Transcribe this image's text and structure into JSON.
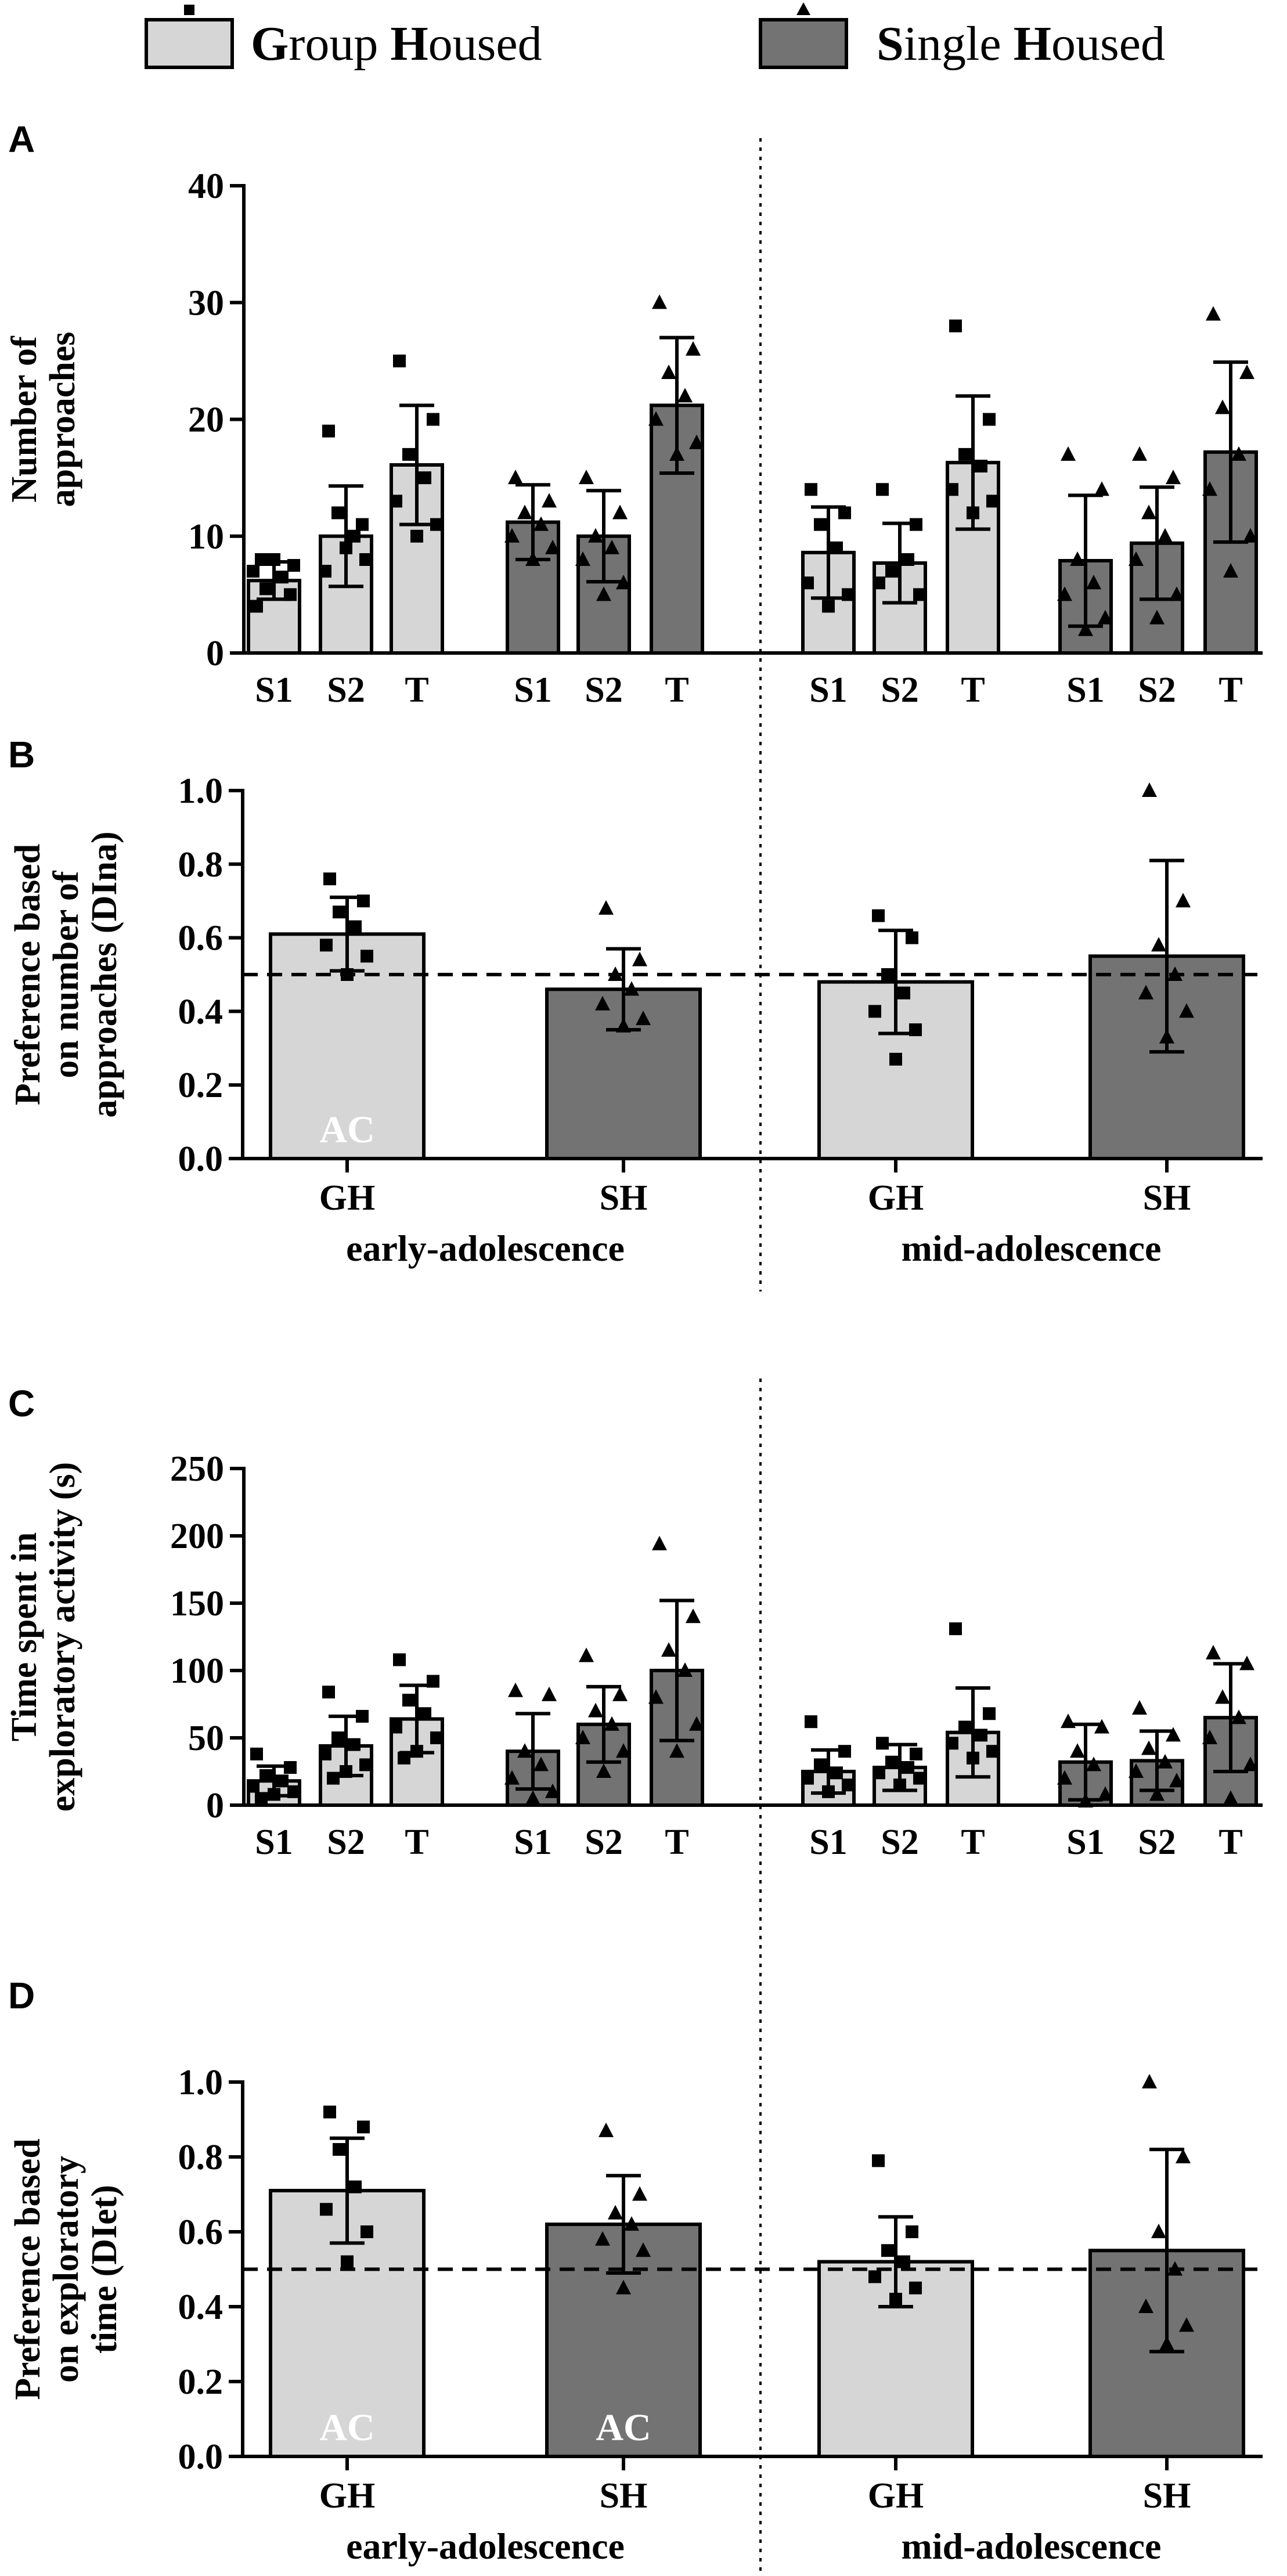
{
  "legend": {
    "group_housed": {
      "first": "G",
      "rest1": "roup ",
      "cap2": "H",
      "rest2": "oused",
      "marker": "square-marker-icon"
    },
    "single_housed": {
      "first": "S",
      "rest1": "ingle ",
      "cap2": "H",
      "rest2": "oused",
      "marker": "triangle-marker-icon"
    }
  },
  "colors": {
    "group_housed": "#d6d6d6",
    "single_housed": "#737373",
    "edge": "#000000"
  },
  "chart_data": [
    {
      "panel": "A",
      "type": "bar",
      "ylabel_lines": [
        "Number of",
        "approaches"
      ],
      "ylim": [
        0,
        40
      ],
      "yticks": [
        "0",
        "10",
        "20",
        "30",
        "40"
      ],
      "categories": [
        "S1",
        "S2",
        "T",
        "S1",
        "S2",
        "T",
        "S1",
        "S2",
        "T",
        "S1",
        "S2",
        "T"
      ],
      "series": [
        {
          "name": "Group Housed",
          "bars": [
            {
              "cat": 0,
              "value": 6.2,
              "sd": 1.6,
              "points": [
                4,
                5,
                5.5,
                6.5,
                7,
                7.5,
                8,
                8
              ]
            },
            {
              "cat": 1,
              "value": 10.0,
              "sd": 4.3,
              "points": [
                19,
                11,
                12,
                10,
                7,
                8,
                9
              ]
            },
            {
              "cat": 2,
              "value": 16.1,
              "sd": 5.1,
              "points": [
                25,
                20,
                17,
                15,
                13,
                11,
                10
              ]
            },
            {
              "cat": 6,
              "value": 8.6,
              "sd": 3.9,
              "points": [
                14,
                12,
                11,
                9,
                6,
                5,
                4
              ]
            },
            {
              "cat": 7,
              "value": 7.7,
              "sd": 3.4,
              "points": [
                14,
                11,
                7,
                8,
                6,
                5
              ]
            },
            {
              "cat": 8,
              "value": 16.3,
              "sd": 5.7,
              "points": [
                28,
                20,
                17,
                16,
                14,
                13,
                12
              ]
            }
          ]
        },
        {
          "name": "Single Housed",
          "bars": [
            {
              "cat": 3,
              "value": 11.2,
              "sd": 3.2,
              "points": [
                15,
                13,
                12,
                11,
                10,
                9,
                8
              ]
            },
            {
              "cat": 4,
              "value": 10.0,
              "sd": 3.9,
              "points": [
                15,
                12,
                10,
                9,
                8,
                6,
                5
              ]
            },
            {
              "cat": 5,
              "value": 21.2,
              "sd": 5.8,
              "points": [
                30,
                26,
                24,
                22,
                20,
                18,
                17
              ]
            },
            {
              "cat": 9,
              "value": 7.9,
              "sd": 5.6,
              "points": [
                17,
                14,
                8,
                6,
                5,
                3,
                2
              ]
            },
            {
              "cat": 10,
              "value": 9.4,
              "sd": 4.8,
              "points": [
                17,
                15,
                12,
                10,
                8,
                5,
                3
              ]
            },
            {
              "cat": 11,
              "value": 17.2,
              "sd": 7.7,
              "points": [
                29,
                24,
                21,
                17,
                14,
                10,
                7
              ]
            }
          ]
        }
      ]
    },
    {
      "panel": "B",
      "type": "bar",
      "ylabel_lines": [
        "Preference based",
        "on number of",
        "approaches (DIna)"
      ],
      "ylim": [
        0,
        1.0
      ],
      "yticks": [
        "0.0",
        "0.2",
        "0.4",
        "0.6",
        "0.8",
        "1.0"
      ],
      "reference_line": 0.5,
      "categories": [
        "GH",
        "SH",
        "GH",
        "SH"
      ],
      "group_labels": [
        "early-adolescence",
        "mid-adolescence"
      ],
      "bars": [
        {
          "cat": 0,
          "series": "Group Housed",
          "value": 0.61,
          "sd": 0.1,
          "annotation": "AC",
          "points": [
            0.76,
            0.7,
            0.67,
            0.63,
            0.58,
            0.55,
            0.5
          ]
        },
        {
          "cat": 1,
          "series": "Single Housed",
          "value": 0.46,
          "sd": 0.11,
          "points": [
            0.68,
            0.54,
            0.5,
            0.46,
            0.42,
            0.38,
            0.36
          ]
        },
        {
          "cat": 2,
          "series": "Group Housed",
          "value": 0.48,
          "sd": 0.14,
          "points": [
            0.66,
            0.6,
            0.5,
            0.45,
            0.4,
            0.35,
            0.27
          ]
        },
        {
          "cat": 3,
          "series": "Single Housed",
          "value": 0.55,
          "sd": 0.26,
          "points": [
            1.0,
            0.7,
            0.58,
            0.5,
            0.45,
            0.4,
            0.33
          ]
        }
      ]
    },
    {
      "panel": "C",
      "type": "bar",
      "ylabel_lines": [
        "Time spent in",
        "exploratory activity (s)"
      ],
      "ylim": [
        0,
        250
      ],
      "yticks": [
        "0",
        "50",
        "100",
        "150",
        "200",
        "250"
      ],
      "categories": [
        "S1",
        "S2",
        "T",
        "S1",
        "S2",
        "T",
        "S1",
        "S2",
        "T",
        "S1",
        "S2",
        "T"
      ],
      "series": [
        {
          "name": "Group Housed",
          "bars": [
            {
              "cat": 0,
              "value": 18,
              "sd": 11,
              "points": [
                38,
                28,
                22,
                18,
                14,
                10,
                8,
                5
              ]
            },
            {
              "cat": 1,
              "value": 44,
              "sd": 22,
              "points": [
                84,
                66,
                50,
                45,
                38,
                30,
                25,
                20
              ]
            },
            {
              "cat": 2,
              "value": 64,
              "sd": 25,
              "points": [
                108,
                92,
                78,
                68,
                58,
                50,
                40,
                35
              ]
            },
            {
              "cat": 6,
              "value": 25,
              "sd": 16,
              "points": [
                62,
                40,
                30,
                24,
                20,
                15,
                10
              ]
            },
            {
              "cat": 7,
              "value": 28,
              "sd": 17,
              "points": [
                46,
                38,
                32,
                28,
                24,
                20,
                15
              ]
            },
            {
              "cat": 8,
              "value": 54,
              "sd": 33,
              "points": [
                131,
                68,
                58,
                52,
                46,
                40,
                35
              ]
            }
          ]
        },
        {
          "name": "Single Housed",
          "bars": [
            {
              "cat": 3,
              "value": 40,
              "sd": 28,
              "points": [
                85,
                82,
                40,
                30,
                20,
                10,
                5
              ]
            },
            {
              "cat": 4,
              "value": 60,
              "sd": 28,
              "points": [
                111,
                82,
                70,
                60,
                50,
                40,
                25
              ]
            },
            {
              "cat": 5,
              "value": 100,
              "sd": 52,
              "points": [
                194,
                140,
                115,
                100,
                80,
                60,
                40
              ]
            },
            {
              "cat": 9,
              "value": 32,
              "sd": 28,
              "points": [
                62,
                58,
                40,
                30,
                20,
                8,
                3
              ]
            },
            {
              "cat": 10,
              "value": 33,
              "sd": 22,
              "points": [
                72,
                52,
                42,
                32,
                25,
                18,
                8
              ]
            },
            {
              "cat": 11,
              "value": 65,
              "sd": 40,
              "points": [
                113,
                105,
                80,
                65,
                50,
                30,
                5
              ]
            }
          ]
        }
      ]
    },
    {
      "panel": "D",
      "type": "bar",
      "ylabel_lines": [
        "Preference based",
        "on exploratory",
        "time (DIet)"
      ],
      "ylim": [
        0,
        1.0
      ],
      "yticks": [
        "0.0",
        "0.2",
        "0.4",
        "0.6",
        "0.8",
        "1.0"
      ],
      "reference_line": 0.5,
      "categories": [
        "GH",
        "SH",
        "GH",
        "SH"
      ],
      "group_labels": [
        "early-adolescence",
        "mid-adolescence"
      ],
      "bars": [
        {
          "cat": 0,
          "series": "Group Housed",
          "value": 0.71,
          "sd": 0.14,
          "annotation": "AC",
          "points": [
            0.92,
            0.88,
            0.82,
            0.72,
            0.66,
            0.6,
            0.52
          ]
        },
        {
          "cat": 1,
          "series": "Single Housed",
          "value": 0.62,
          "sd": 0.13,
          "annotation": "AC",
          "points": [
            0.87,
            0.7,
            0.65,
            0.62,
            0.58,
            0.55,
            0.45
          ]
        },
        {
          "cat": 2,
          "series": "Group Housed",
          "value": 0.52,
          "sd": 0.12,
          "points": [
            0.79,
            0.6,
            0.55,
            0.52,
            0.48,
            0.45,
            0.42
          ]
        },
        {
          "cat": 3,
          "series": "Single Housed",
          "value": 0.55,
          "sd": 0.27,
          "points": [
            1.0,
            0.8,
            0.6,
            0.5,
            0.4,
            0.35,
            0.3
          ]
        }
      ]
    }
  ]
}
